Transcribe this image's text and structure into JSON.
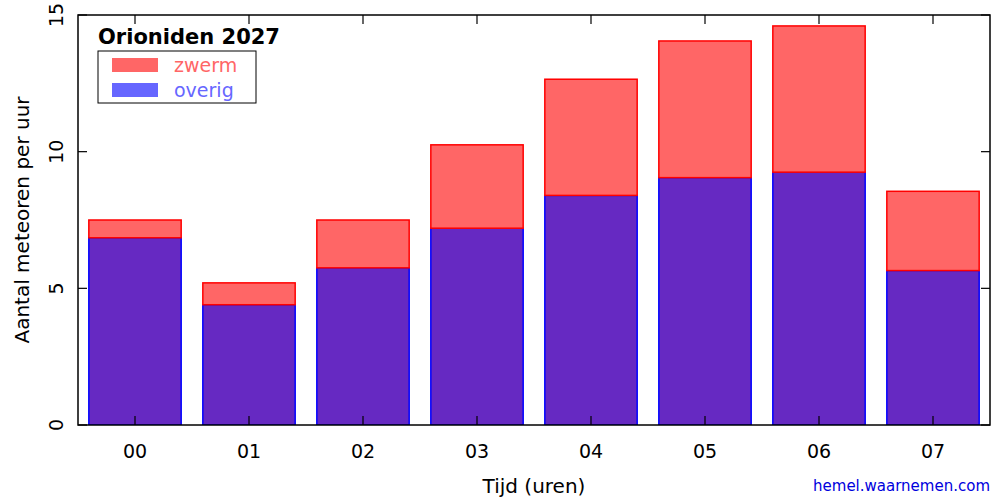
{
  "chart_data": {
    "type": "bar",
    "title": "Orioniden 2027",
    "x_label": "Tijd (uren)",
    "y_label": "Aantal meteoren per uur",
    "annotations": [
      "hemel.waarnemen.com"
    ],
    "categories": [
      "00",
      "01",
      "02",
      "03",
      "04",
      "05",
      "06",
      "07"
    ],
    "series": [
      {
        "name": "overig",
        "color": "#0000ff",
        "values": [
          6.85,
          4.4,
          5.75,
          7.2,
          8.4,
          9.05,
          9.25,
          5.65
        ]
      },
      {
        "name": "zwerm",
        "color": "#ff0000",
        "values": [
          0.65,
          0.8,
          1.75,
          3.05,
          4.25,
          5.0,
          5.35,
          2.9
        ]
      }
    ],
    "stacked": true,
    "legend": "upper left",
    "grid": false,
    "ylim": [
      0,
      15
    ],
    "yticks": [
      0,
      5,
      10,
      15
    ]
  }
}
